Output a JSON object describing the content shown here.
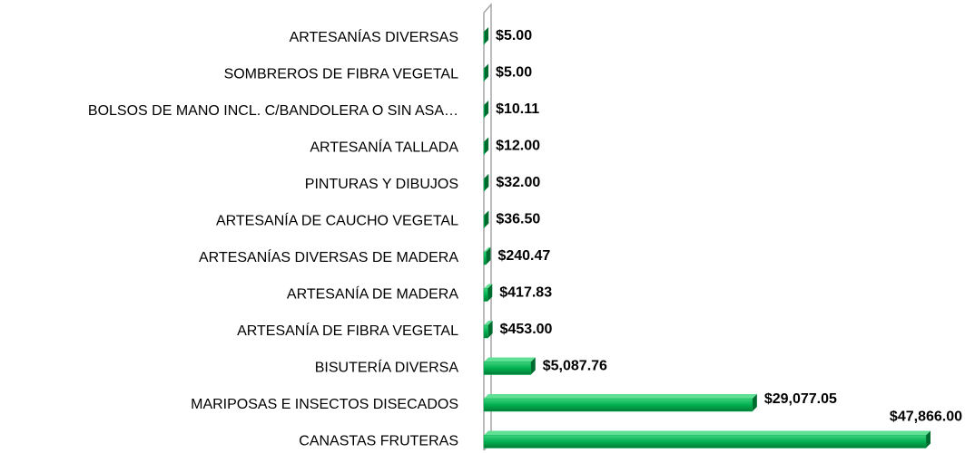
{
  "chart_data": {
    "type": "bar",
    "orientation": "horizontal",
    "categories": [
      "ARTESANÍAS DIVERSAS",
      "SOMBREROS DE FIBRA VEGETAL",
      "BOLSOS DE MANO  INCL. C/BANDOLERA O SIN ASA…",
      "ARTESANÍA TALLADA",
      "PINTURAS Y DIBUJOS",
      "ARTESANÍA DE CAUCHO VEGETAL",
      "ARTESANÍAS DIVERSAS DE MADERA",
      "ARTESANÍA DE MADERA",
      "ARTESANÍA DE FIBRA VEGETAL",
      "BISUTERÍA DIVERSA",
      "MARIPOSAS E INSECTOS DISECADOS",
      "CANASTAS FRUTERAS"
    ],
    "values": [
      5,
      5,
      10.11,
      12,
      32,
      36.5,
      240.47,
      417.83,
      453,
      5087.76,
      29077.05,
      47866
    ],
    "value_labels": [
      "$5.00",
      "$5.00",
      "$10.11",
      "$12.00",
      "$32.00",
      "$36.50",
      "$240.47",
      "$417.83",
      "$453.00",
      "$5,087.76",
      "$29,077.05",
      "$47,866.00"
    ],
    "color": "#00b050"
  }
}
